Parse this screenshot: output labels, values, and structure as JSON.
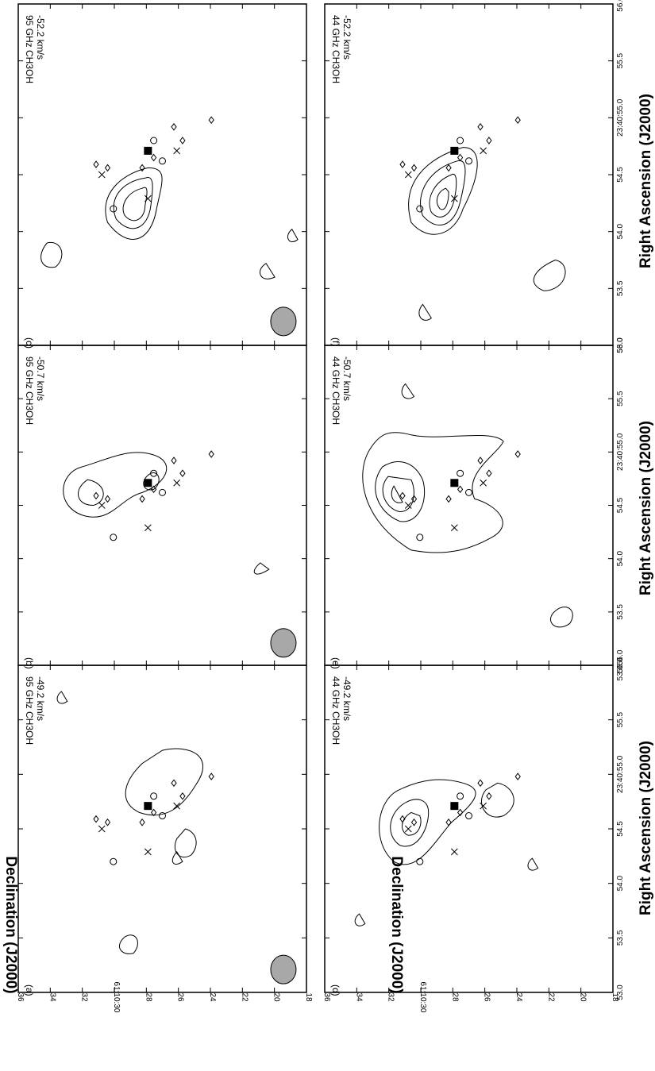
{
  "figure": {
    "xlabel": "Right Ascension (J2000)",
    "ylabel": "Declination (J2000)",
    "ra_ticks": [
      "56.0",
      "55.5",
      "23:40:55.0",
      "54.5",
      "54.0",
      "53.5",
      "53.0"
    ],
    "ra_ticks_mid": [
      "56.0",
      "55.5",
      "23:40:55.0",
      "54.5",
      "54.0",
      "53.5",
      "53.056.0"
    ],
    "dec_ticks": [
      "36",
      "34",
      "32",
      "30",
      "28",
      "26",
      "24",
      "22",
      "20",
      "18"
    ],
    "dec_ticks_mid": [
      "36",
      "34",
      "32",
      "61:10:30",
      "28",
      "26",
      "24",
      "22",
      "20",
      "18"
    ]
  },
  "panels": [
    {
      "id": "a",
      "letter": "(a)",
      "line": "95 GHz CH3OH",
      "velocity": "-49.2 km/s",
      "beam": true
    },
    {
      "id": "b",
      "letter": "(b)",
      "line": "95 GHz CH3OH",
      "velocity": "-50.7 km/s",
      "beam": true
    },
    {
      "id": "c",
      "letter": "(c)",
      "line": "95 GHz CH3OH",
      "velocity": "-52.2 km/s",
      "beam": true
    },
    {
      "id": "d",
      "letter": "(d)",
      "line": "44 GHz CH3OH",
      "velocity": "-49.2 km/s",
      "beam": false
    },
    {
      "id": "e",
      "letter": "(e)",
      "line": "44 GHz CH3OH",
      "velocity": "-50.7 km/s",
      "beam": false
    },
    {
      "id": "f",
      "letter": "(f)",
      "line": "44 GHz CH3OH",
      "velocity": "-52.2 km/s",
      "beam": false
    }
  ]
}
